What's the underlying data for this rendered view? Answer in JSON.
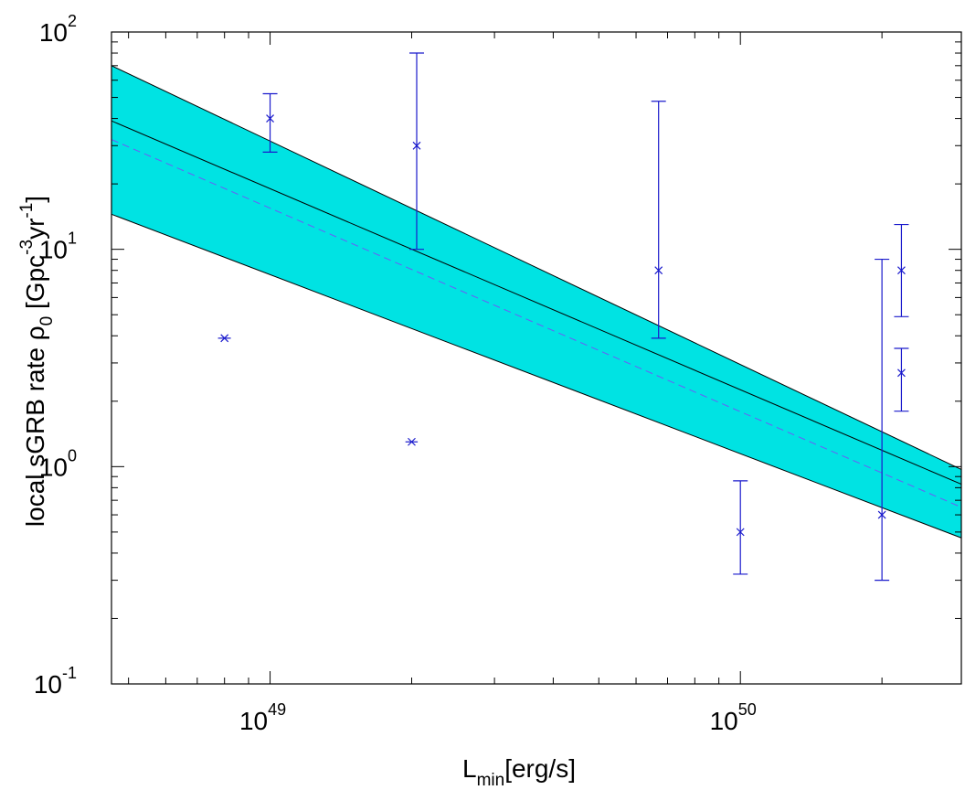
{
  "chart_data": {
    "type": "scatter",
    "xscale": "log",
    "yscale": "log",
    "xlim": [
      4.6e+48,
      2.95e+50
    ],
    "ylim": [
      0.1,
      100
    ],
    "xlabel": {
      "main": "L",
      "sub": "min",
      "rest": "[erg/s]"
    },
    "ylabel": {
      "pre": "local sGRB rate ρ",
      "sub": "0",
      "units_a": " [Gpc",
      "exp1": "-3",
      "units_b": "yr",
      "exp2": "-1",
      "units_c": "]"
    },
    "xticks": [
      {
        "value": 1e+49,
        "base": "10",
        "exp": "49"
      },
      {
        "value": 1e+50,
        "base": "10",
        "exp": "50"
      }
    ],
    "yticks": [
      {
        "value": 0.1,
        "base": "10",
        "exp": "-1"
      },
      {
        "value": 1,
        "base": "10",
        "exp": "0"
      },
      {
        "value": 10,
        "base": "10",
        "exp": "1"
      },
      {
        "value": 100,
        "base": "10",
        "exp": "2"
      }
    ],
    "band": {
      "color": "#00e3e3",
      "upper": [
        [
          4.6e+48,
          70
        ],
        [
          2.95e+50,
          0.97
        ]
      ],
      "lower": [
        [
          4.6e+48,
          14.5
        ],
        [
          2.95e+50,
          0.47
        ]
      ]
    },
    "series": [
      {
        "style": "solid",
        "color": "#000000",
        "points": [
          [
            4.6e+48,
            39
          ],
          [
            2.95e+50,
            0.83
          ]
        ]
      },
      {
        "style": "dashed",
        "color": "#6a5cf7",
        "points": [
          [
            4.6e+48,
            32
          ],
          [
            2.95e+50,
            0.65
          ]
        ]
      }
    ],
    "points_color": "#1a1acc",
    "points": [
      {
        "x": 8e+48,
        "y": 3.9,
        "ylo": 3.9,
        "yhi": 3.9,
        "xlo": 7.75e+48,
        "xhi": 8.25e+48
      },
      {
        "x": 1e+49,
        "y": 40,
        "ylo": 28,
        "yhi": 52
      },
      {
        "x": 2e+49,
        "y": 1.3,
        "ylo": 1.3,
        "yhi": 1.3,
        "xlo": 1.94e+49,
        "xhi": 2.06e+49
      },
      {
        "x": 2.05e+49,
        "y": 30,
        "ylo": 10,
        "yhi": 80
      },
      {
        "x": 6.7e+49,
        "y": 8,
        "ylo": 3.9,
        "yhi": 48
      },
      {
        "x": 1e+50,
        "y": 0.5,
        "ylo": 0.32,
        "yhi": 0.86
      },
      {
        "x": 2e+50,
        "y": 0.6,
        "ylo": 0.3,
        "yhi": 9
      },
      {
        "x": 2.2e+50,
        "y": 8,
        "ylo": 4.9,
        "yhi": 13
      },
      {
        "x": 2.2e+50,
        "y": 2.7,
        "ylo": 1.8,
        "yhi": 3.5
      }
    ],
    "grid": false,
    "legend": "none"
  }
}
